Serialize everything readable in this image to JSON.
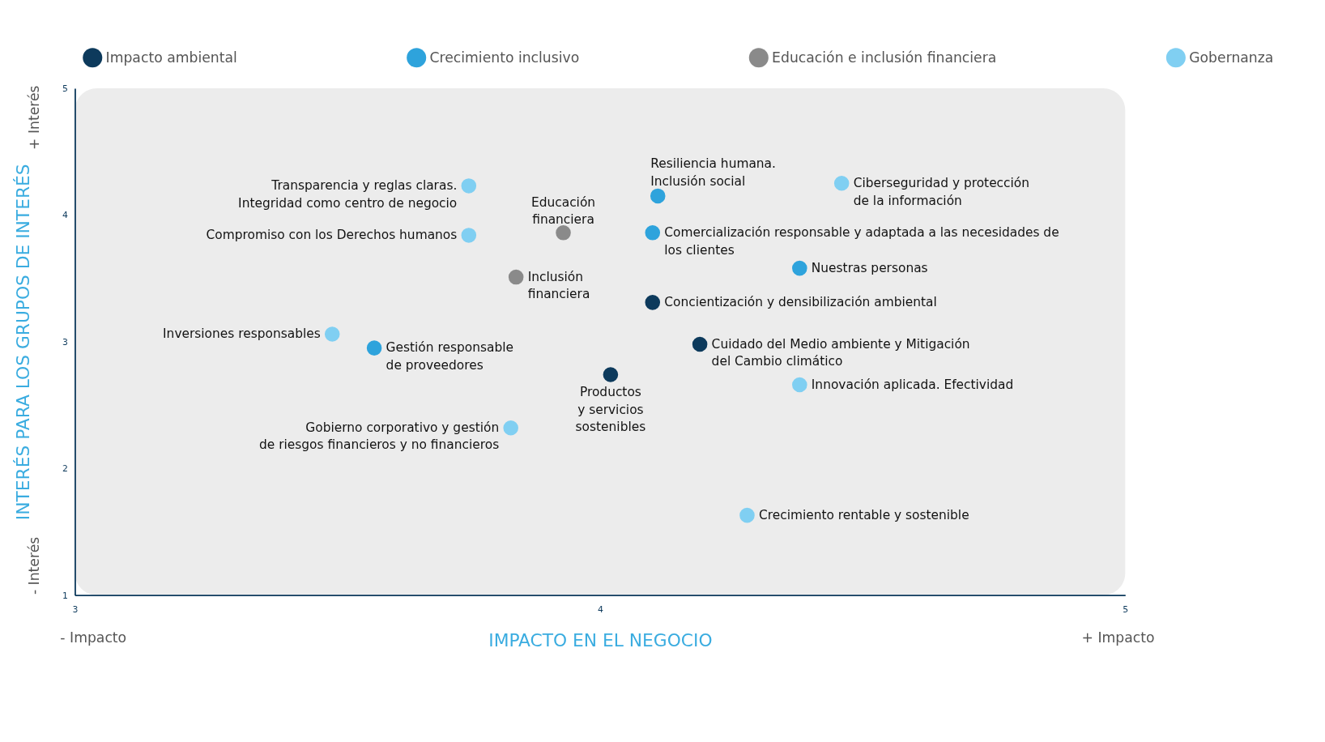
{
  "chart_data": {
    "type": "scatter",
    "xlabel": "IMPACTO EN EL NEGOCIO",
    "ylabel": "INTERÉS PARA LOS GRUPOS DE INTERÉS",
    "xlim": [
      3,
      5
    ],
    "xticks": [
      3,
      4,
      5
    ],
    "ylim": [
      1,
      5
    ],
    "yticks": [
      1,
      2,
      3,
      4,
      5
    ],
    "grid": false,
    "legend": "top",
    "marker": "circle",
    "series": [
      {
        "name": "Impacto ambiental",
        "color": "#0d3a5c",
        "x": [
          4.1,
          4.19,
          4.02
        ],
        "values": [
          3.31,
          2.98,
          2.74
        ]
      },
      {
        "name": "Crecimiento inclusivo",
        "color": "#2ea3dc",
        "x": [
          4.11,
          4.1,
          4.38,
          3.57
        ],
        "values": [
          4.15,
          3.86,
          3.58,
          2.95
        ]
      },
      {
        "name": "Educación e inclusión financiera",
        "color": "#8a8a8a",
        "x": [
          3.93,
          3.84
        ],
        "values": [
          3.86,
          3.51
        ]
      },
      {
        "name": "Gobernanza",
        "color": "#80cff2",
        "x": [
          3.75,
          3.75,
          4.46,
          3.49,
          4.38,
          3.83,
          4.28
        ],
        "values": [
          4.23,
          3.84,
          4.25,
          3.06,
          2.66,
          2.32,
          1.63
        ]
      }
    ],
    "annotations": [
      "- Impacto",
      "+ Impacto",
      "- Interés",
      "+ Interés",
      {
        "text": "Concientización y densibilización ambiental",
        "x": 4.1,
        "y": 3.31
      },
      {
        "text": "Cuidado del Medio ambiente y Mitigación\ndel Cambio climático",
        "x": 4.19,
        "y": 2.98
      },
      {
        "text": "Productos\ny servicios\nsostenibles",
        "x": 4.02,
        "y": 2.74
      },
      {
        "text": "Resiliencia humana.\nInclusión social",
        "x": 4.11,
        "y": 4.15
      },
      {
        "text": "Comercialización responsable y adaptada a las necesidades de\nlos clientes",
        "x": 4.1,
        "y": 3.86
      },
      {
        "text": "Nuestras personas",
        "x": 4.38,
        "y": 3.58
      },
      {
        "text": "Gestión responsable\nde proveedores",
        "x": 3.57,
        "y": 2.95
      },
      {
        "text": "Educación\nfinanciera",
        "x": 3.93,
        "y": 3.86
      },
      {
        "text": "Inclusión\nfinanciera",
        "x": 3.84,
        "y": 3.51
      },
      {
        "text": "Transparencia y reglas claras.\nIntegridad como centro de negocio",
        "x": 3.75,
        "y": 4.23
      },
      {
        "text": "Compromiso con los  Derechos humanos",
        "x": 3.75,
        "y": 3.84
      },
      {
        "text": "Ciberseguridad y protección\nde la información",
        "x": 4.46,
        "y": 4.25
      },
      {
        "text": "Inversiones responsables",
        "x": 3.49,
        "y": 3.06
      },
      {
        "text": "Innovación aplicada. Efectividad",
        "x": 4.38,
        "y": 2.66
      },
      {
        "text": "Gobierno corporativo y gestión\nde riesgos financieros y no financieros",
        "x": 3.83,
        "y": 2.32
      },
      {
        "text": "Crecimiento rentable y sostenible",
        "x": 4.28,
        "y": 1.63
      }
    ]
  }
}
